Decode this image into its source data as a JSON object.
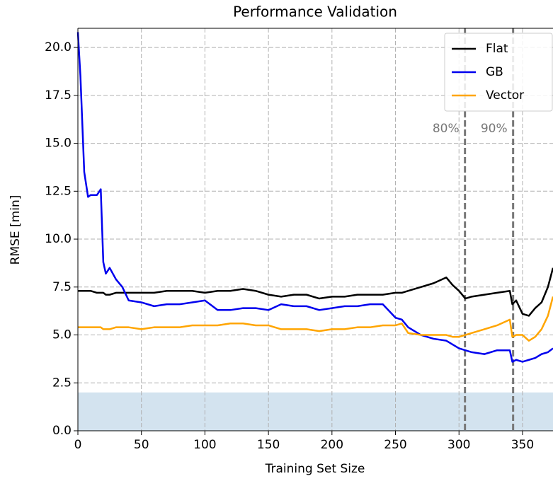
{
  "chart_data": {
    "type": "line",
    "title": "Performance Validation",
    "x_label": "Training Set Size",
    "y_label": "RMSE [min]",
    "xlim": [
      0,
      374
    ],
    "ylim": [
      0,
      21
    ],
    "xticks": [
      0,
      50,
      100,
      150,
      200,
      250,
      300,
      350
    ],
    "yticks": [
      {
        "value": 0,
        "label": "0.0"
      },
      {
        "value": 2.5,
        "label": "2.5"
      },
      {
        "value": 5,
        "label": "5.0"
      },
      {
        "value": 7.5,
        "label": "7.5"
      },
      {
        "value": 10,
        "label": "10.0"
      },
      {
        "value": 12.5,
        "label": "12.5"
      },
      {
        "value": 15,
        "label": "15.0"
      },
      {
        "value": 17.5,
        "label": "17.5"
      },
      {
        "value": 20,
        "label": "20.0"
      }
    ],
    "grid": true,
    "legend": "upper right",
    "band": {
      "range": [
        0,
        2
      ],
      "color": "#d3e3ef"
    },
    "vlines": [
      {
        "x": 304.7,
        "label": "80%",
        "color": "#777777"
      },
      {
        "x": 342.6,
        "label": "90%",
        "color": "#777777"
      }
    ],
    "x": [
      0,
      2,
      5,
      8,
      10,
      15,
      18,
      20,
      22,
      25,
      30,
      35,
      40,
      50,
      60,
      70,
      80,
      90,
      100,
      110,
      120,
      130,
      140,
      150,
      160,
      170,
      180,
      190,
      200,
      210,
      220,
      230,
      240,
      250,
      255,
      260,
      270,
      280,
      290,
      295,
      300,
      305,
      310,
      320,
      330,
      340,
      342,
      345,
      350,
      355,
      360,
      365,
      370,
      374
    ],
    "series": [
      {
        "name": "Flat",
        "color": "#000000",
        "values": [
          7.3,
          7.3,
          7.3,
          7.3,
          7.3,
          7.2,
          7.2,
          7.2,
          7.1,
          7.1,
          7.2,
          7.2,
          7.2,
          7.2,
          7.2,
          7.3,
          7.3,
          7.3,
          7.2,
          7.3,
          7.3,
          7.4,
          7.3,
          7.1,
          7.0,
          7.1,
          7.1,
          6.9,
          7.0,
          7.0,
          7.1,
          7.1,
          7.1,
          7.2,
          7.2,
          7.3,
          7.5,
          7.7,
          8.0,
          7.6,
          7.3,
          6.9,
          7.0,
          7.1,
          7.2,
          7.3,
          6.6,
          6.8,
          6.1,
          6.0,
          6.4,
          6.7,
          7.5,
          8.5
        ]
      },
      {
        "name": "GB",
        "color": "#0000ee",
        "values": [
          20.8,
          18.5,
          13.5,
          12.2,
          12.3,
          12.3,
          12.6,
          8.8,
          8.2,
          8.5,
          7.9,
          7.5,
          6.8,
          6.7,
          6.5,
          6.6,
          6.6,
          6.7,
          6.8,
          6.3,
          6.3,
          6.4,
          6.4,
          6.3,
          6.6,
          6.5,
          6.5,
          6.3,
          6.4,
          6.5,
          6.5,
          6.6,
          6.6,
          5.9,
          5.8,
          5.4,
          5.0,
          4.8,
          4.7,
          4.5,
          4.3,
          4.2,
          4.1,
          4.0,
          4.2,
          4.2,
          3.6,
          3.7,
          3.6,
          3.7,
          3.8,
          4.0,
          4.1,
          4.3
        ]
      },
      {
        "name": "Vector",
        "color": "#ffa500",
        "values": [
          5.4,
          5.4,
          5.4,
          5.4,
          5.4,
          5.4,
          5.4,
          5.3,
          5.3,
          5.3,
          5.4,
          5.4,
          5.4,
          5.3,
          5.4,
          5.4,
          5.4,
          5.5,
          5.5,
          5.5,
          5.6,
          5.6,
          5.5,
          5.5,
          5.3,
          5.3,
          5.3,
          5.2,
          5.3,
          5.3,
          5.4,
          5.4,
          5.5,
          5.5,
          5.6,
          5.1,
          5.0,
          5.0,
          5.0,
          4.9,
          4.9,
          5.0,
          5.1,
          5.3,
          5.5,
          5.8,
          4.9,
          5.0,
          5.0,
          4.7,
          4.9,
          5.3,
          6.0,
          7.0
        ]
      }
    ]
  }
}
